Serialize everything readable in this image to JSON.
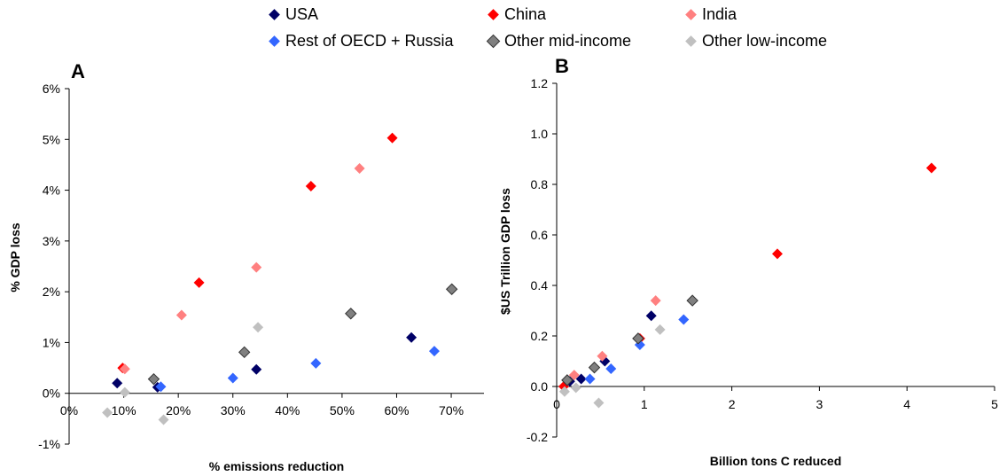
{
  "series_styles": [
    {
      "name": "USA",
      "color": "#000066",
      "outlined": false
    },
    {
      "name": "China",
      "color": "#ff0000",
      "outlined": false
    },
    {
      "name": "India",
      "color": "#ff8080",
      "outlined": false
    },
    {
      "name": "Rest of OECD + Russia",
      "color": "#3366ff",
      "outlined": false
    },
    {
      "name": "Other mid-income",
      "color": "#808080",
      "outlined": true
    },
    {
      "name": "Other low-income",
      "color": "#c0c0c0",
      "outlined": false
    }
  ],
  "legend": {
    "placement": "top-center",
    "items": [
      "USA",
      "China",
      "India",
      "Rest of OECD + Russia",
      "Other mid-income",
      "Other low-income"
    ]
  },
  "chart_data": [
    {
      "type": "scatter",
      "panel_label": "A",
      "title": "",
      "xlabel": "% emissions reduction",
      "ylabel": "% GDP loss",
      "xlim": [
        0,
        76
      ],
      "ylim": [
        -1,
        6
      ],
      "x_ticks": [
        0,
        10,
        20,
        30,
        40,
        50,
        60,
        70
      ],
      "x_tick_labels": [
        "0%",
        "10%",
        "20%",
        "30%",
        "40%",
        "50%",
        "60%",
        "70%"
      ],
      "y_ticks": [
        -1,
        0,
        1,
        2,
        3,
        4,
        5,
        6
      ],
      "y_tick_labels": [
        "-1%",
        "0%",
        "1%",
        "2%",
        "3%",
        "4%",
        "5%",
        "6%"
      ],
      "grid": false,
      "series": [
        {
          "name": "USA",
          "points": [
            [
              8.8,
              0.2
            ],
            [
              16.2,
              0.12
            ],
            [
              34.3,
              0.47
            ],
            [
              62.7,
              1.1
            ]
          ]
        },
        {
          "name": "China",
          "points": [
            [
              9.8,
              0.5
            ],
            [
              23.8,
              2.18
            ],
            [
              44.3,
              4.08
            ],
            [
              59.2,
              5.03
            ]
          ]
        },
        {
          "name": "India",
          "points": [
            [
              10.2,
              0.48
            ],
            [
              20.6,
              1.54
            ],
            [
              34.3,
              2.48
            ],
            [
              53.2,
              4.43
            ]
          ]
        },
        {
          "name": "Rest of OECD + Russia",
          "points": [
            [
              16.8,
              0.13
            ],
            [
              30.0,
              0.3
            ],
            [
              45.2,
              0.59
            ],
            [
              66.9,
              0.83
            ]
          ]
        },
        {
          "name": "Other mid-income",
          "points": [
            [
              15.5,
              0.28
            ],
            [
              32.1,
              0.81
            ],
            [
              51.6,
              1.57
            ],
            [
              70.1,
              2.05
            ]
          ]
        },
        {
          "name": "Other low-income",
          "points": [
            [
              7.0,
              -0.38
            ],
            [
              10.2,
              0.02
            ],
            [
              17.3,
              -0.52
            ],
            [
              34.6,
              1.3
            ]
          ]
        }
      ]
    },
    {
      "type": "scatter",
      "panel_label": "B",
      "title": "",
      "xlabel": "Billion tons C reduced",
      "ylabel": "$US Trillion GDP loss",
      "xlim": [
        0,
        5
      ],
      "ylim": [
        -0.2,
        1.2
      ],
      "x_ticks": [
        0,
        1,
        2,
        3,
        4,
        5
      ],
      "x_tick_labels": [
        "0",
        "1",
        "2",
        "3",
        "4",
        "5"
      ],
      "y_ticks": [
        -0.2,
        0,
        0.2,
        0.4,
        0.6,
        0.8,
        1.0,
        1.2
      ],
      "y_tick_labels": [
        "-0.2",
        "0.0",
        "0.2",
        "0.4",
        "0.6",
        "0.8",
        "1.0",
        "1.2"
      ],
      "grid": false,
      "series": [
        {
          "name": "USA",
          "points": [
            [
              0.15,
              0.02
            ],
            [
              0.28,
              0.03
            ],
            [
              0.55,
              0.1
            ],
            [
              1.08,
              0.28
            ]
          ]
        },
        {
          "name": "China",
          "points": [
            [
              0.08,
              0.0
            ],
            [
              0.95,
              0.19
            ],
            [
              2.52,
              0.525
            ],
            [
              4.28,
              0.865
            ]
          ]
        },
        {
          "name": "India",
          "points": [
            [
              0.2,
              0.045
            ],
            [
              0.52,
              0.12
            ],
            [
              0.93,
              0.19
            ],
            [
              1.13,
              0.34
            ]
          ]
        },
        {
          "name": "Rest of OECD + Russia",
          "points": [
            [
              0.38,
              0.03
            ],
            [
              0.62,
              0.07
            ],
            [
              0.95,
              0.165
            ],
            [
              1.45,
              0.265
            ]
          ]
        },
        {
          "name": "Other mid-income",
          "points": [
            [
              0.12,
              0.025
            ],
            [
              0.43,
              0.075
            ],
            [
              0.93,
              0.19
            ],
            [
              1.55,
              0.34
            ]
          ]
        },
        {
          "name": "Other low-income",
          "points": [
            [
              0.09,
              -0.02
            ],
            [
              0.22,
              -0.005
            ],
            [
              0.48,
              -0.065
            ],
            [
              1.18,
              0.225
            ]
          ]
        }
      ]
    }
  ]
}
